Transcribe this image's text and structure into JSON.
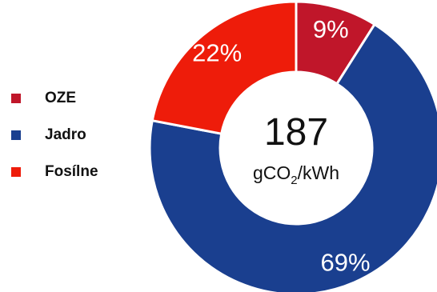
{
  "chart_data": {
    "type": "pie",
    "style": "donut",
    "categories": [
      "OZE",
      "Jadro",
      "Fosílne"
    ],
    "values": [
      9,
      69,
      22
    ],
    "value_labels": [
      "9%",
      "69%",
      "22%"
    ],
    "colors": [
      "#c0162a",
      "#1a3f8f",
      "#ee1c0a"
    ],
    "center_value": "187",
    "center_unit": {
      "pre": "gCO",
      "sub": "2",
      "post": "/kWh"
    },
    "legend_position": "left"
  }
}
